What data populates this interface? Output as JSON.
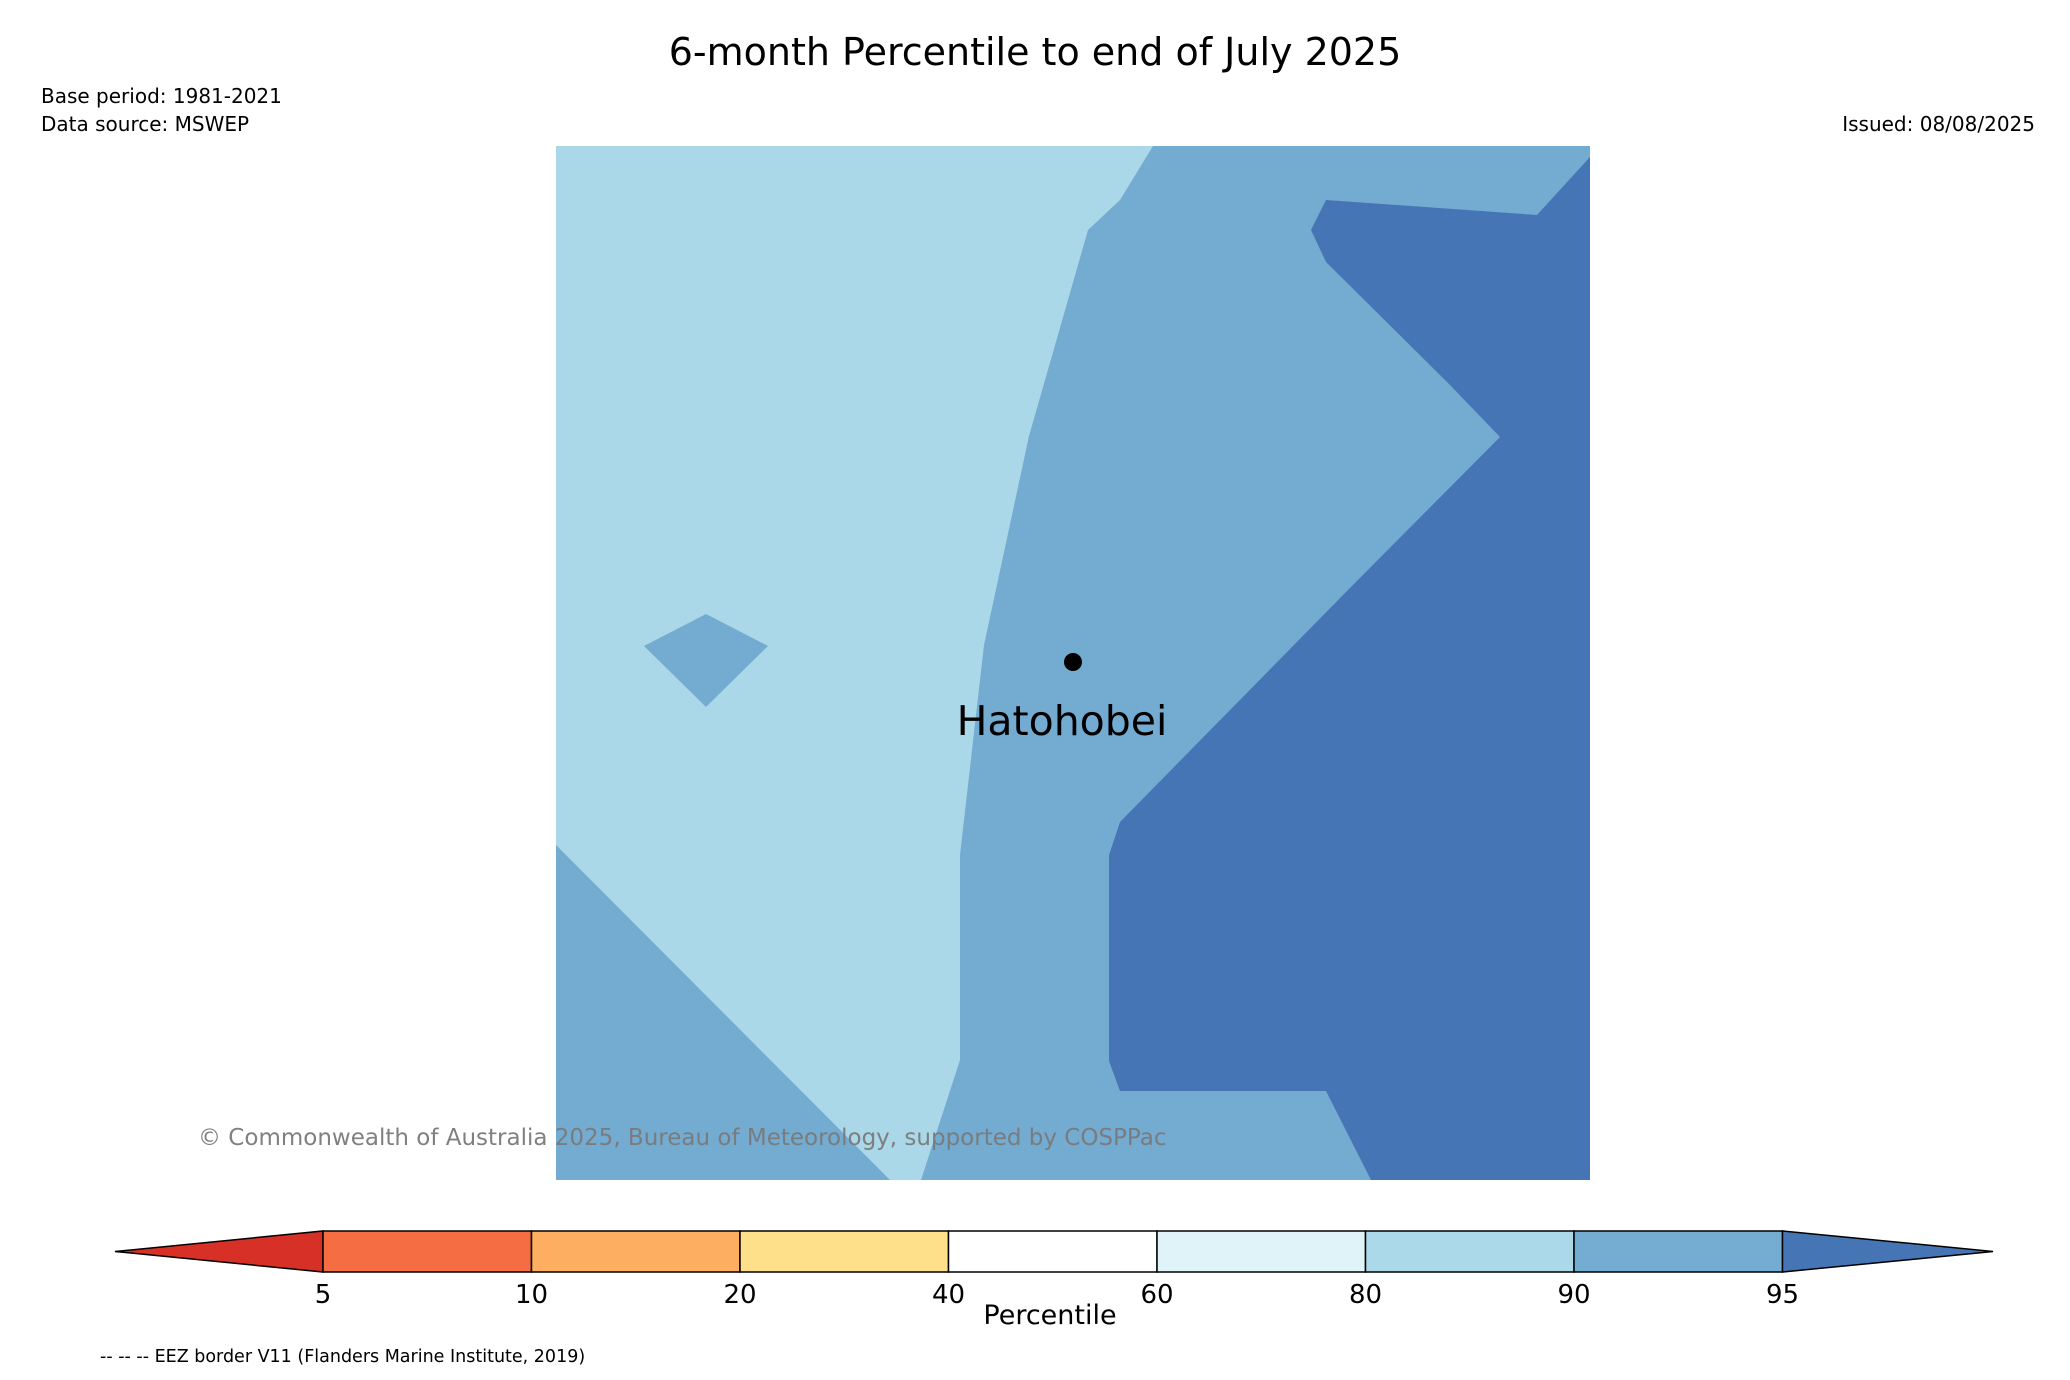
{
  "header": {
    "title": "6-month Percentile to end of July 2025",
    "base_period": "Base period: 1981-2021",
    "data_source": "Data source: MSWEP",
    "issued": "Issued: 08/08/2025"
  },
  "map": {
    "place_label": "Hatohobei",
    "colors": {
      "p80_90": "#abd8e8",
      "p90_95": "#74abd1",
      "p95_plus": "#4575b4"
    }
  },
  "copyright": "© Commonwealth of Australia 2025, Bureau of Meteorology, supported by COSPPac",
  "colorbar": {
    "label": "Percentile",
    "ticks": [
      "5",
      "10",
      "20",
      "40",
      "60",
      "80",
      "90",
      "95"
    ],
    "colors": [
      "#d73027",
      "#f46d43",
      "#fdae61",
      "#fee08b",
      "#ffffff",
      "#e0f3f8",
      "#abd9e9",
      "#74add1",
      "#4575b4"
    ]
  },
  "footer": {
    "eez_note": "-- -- -- EEZ border V11 (Flanders Marine Institute, 2019)"
  }
}
